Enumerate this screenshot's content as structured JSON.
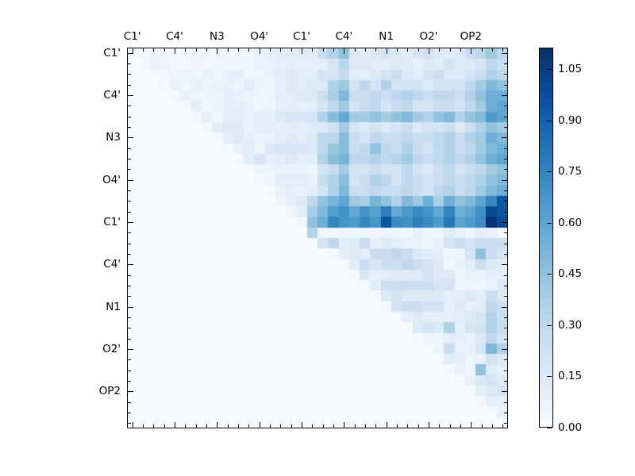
{
  "figure": {
    "background": "#ffffff",
    "axis_color": "#000000"
  },
  "chart_data": {
    "type": "heatmap",
    "title": "",
    "xlabel": "",
    "ylabel": "",
    "colormap": "Blues",
    "colormap_anchors": [
      "#f7fbff",
      "#deebf7",
      "#c6dbef",
      "#9ecae1",
      "#6baed6",
      "#4292c6",
      "#2171b5",
      "#08519c",
      "#08306b"
    ],
    "vmin": 0,
    "vmax": 1.113,
    "n": 36,
    "grid": "off",
    "triangle": "upper",
    "x_tick_labels": [
      "C1'",
      "C4'",
      "N3",
      "O4'",
      "C1'",
      "C4'",
      "N1",
      "O2'",
      "OP2"
    ],
    "y_tick_labels": [
      "C1'",
      "C4'",
      "N3",
      "O4'",
      "C1'",
      "C4'",
      "N1",
      "O2'",
      "OP2"
    ],
    "major_tick_cells": [
      0,
      4,
      8,
      12,
      16,
      20,
      24,
      28,
      32
    ],
    "colorbar": {
      "tick_labels": [
        "1.05",
        "0.90",
        "0.75",
        "0.60",
        "0.45",
        "0.30",
        "0.15",
        "0.00"
      ],
      "tick_values": [
        1.05,
        0.9,
        0.75,
        0.6,
        0.45,
        0.3,
        0.15,
        0.0
      ],
      "position": "right"
    },
    "values": [
      [
        0.02,
        0.03,
        0.05,
        0.04,
        0.03,
        0.03,
        0.04,
        0.03,
        0.04,
        0.05,
        0.04,
        0.05,
        0.08,
        0.1,
        0.12,
        0.13,
        0.14,
        0.12,
        0.25,
        0.35,
        0.45,
        0.15,
        0.12,
        0.15,
        0.2,
        0.15,
        0.12,
        0.18,
        0.22,
        0.15,
        0.12,
        0.15,
        0.25,
        0.3,
        0.42,
        0.3
      ],
      [
        0,
        0.02,
        0.07,
        0.06,
        0.03,
        0.03,
        0.05,
        0.03,
        0.04,
        0.04,
        0.05,
        0.05,
        0.08,
        0.08,
        0.1,
        0.12,
        0.1,
        0.1,
        0.1,
        0.18,
        0.32,
        0.15,
        0.14,
        0.12,
        0.12,
        0.15,
        0.14,
        0.1,
        0.14,
        0.12,
        0.2,
        0.15,
        0.15,
        0.2,
        0.3,
        0.25
      ],
      [
        0,
        0,
        0.02,
        0.03,
        0.05,
        0.06,
        0.04,
        0.07,
        0.05,
        0.08,
        0.1,
        0.05,
        0.05,
        0.08,
        0.12,
        0.15,
        0.12,
        0.12,
        0.2,
        0.18,
        0.28,
        0.12,
        0.1,
        0.15,
        0.2,
        0.25,
        0.15,
        0.12,
        0.2,
        0.25,
        0.15,
        0.15,
        0.2,
        0.25,
        0.35,
        0.3
      ],
      [
        0,
        0,
        0,
        0.02,
        0.07,
        0.05,
        0.09,
        0.06,
        0.08,
        0.09,
        0.06,
        0.12,
        0.06,
        0.04,
        0.1,
        0.15,
        0.12,
        0.15,
        0.15,
        0.35,
        0.42,
        0.2,
        0.3,
        0.2,
        0.35,
        0.2,
        0.2,
        0.2,
        0.15,
        0.2,
        0.2,
        0.2,
        0.3,
        0.4,
        0.5,
        0.45
      ],
      [
        0,
        0,
        0,
        0,
        0.02,
        0.08,
        0.05,
        0.06,
        0.05,
        0.1,
        0.08,
        0.06,
        0.05,
        0.05,
        0.12,
        0.12,
        0.15,
        0.15,
        0.25,
        0.38,
        0.5,
        0.25,
        0.25,
        0.3,
        0.25,
        0.3,
        0.35,
        0.3,
        0.25,
        0.3,
        0.3,
        0.25,
        0.35,
        0.45,
        0.55,
        0.55
      ],
      [
        0,
        0,
        0,
        0,
        0,
        0.02,
        0.12,
        0.05,
        0.06,
        0.1,
        0.1,
        0.08,
        0.05,
        0.06,
        0.1,
        0.12,
        0.1,
        0.12,
        0.2,
        0.3,
        0.42,
        0.2,
        0.25,
        0.3,
        0.2,
        0.25,
        0.3,
        0.2,
        0.2,
        0.25,
        0.25,
        0.2,
        0.3,
        0.4,
        0.55,
        0.6
      ],
      [
        0,
        0,
        0,
        0,
        0,
        0,
        0.02,
        0.1,
        0.05,
        0.12,
        0.12,
        0.08,
        0.1,
        0.1,
        0.15,
        0.18,
        0.18,
        0.2,
        0.35,
        0.48,
        0.58,
        0.4,
        0.4,
        0.45,
        0.4,
        0.45,
        0.5,
        0.4,
        0.35,
        0.45,
        0.5,
        0.35,
        0.45,
        0.5,
        0.65,
        0.6
      ],
      [
        0,
        0,
        0,
        0,
        0,
        0,
        0,
        0.02,
        0.12,
        0.15,
        0.15,
        0.08,
        0.1,
        0.12,
        0.1,
        0.12,
        0.1,
        0.12,
        0.15,
        0.22,
        0.4,
        0.18,
        0.15,
        0.2,
        0.15,
        0.2,
        0.25,
        0.15,
        0.2,
        0.2,
        0.25,
        0.15,
        0.25,
        0.35,
        0.45,
        0.4
      ],
      [
        0,
        0,
        0,
        0,
        0,
        0,
        0,
        0,
        0.02,
        0.1,
        0.15,
        0.1,
        0.08,
        0.08,
        0.12,
        0.15,
        0.12,
        0.15,
        0.3,
        0.32,
        0.48,
        0.25,
        0.2,
        0.3,
        0.25,
        0.25,
        0.3,
        0.25,
        0.25,
        0.3,
        0.35,
        0.25,
        0.35,
        0.4,
        0.55,
        0.5
      ],
      [
        0,
        0,
        0,
        0,
        0,
        0,
        0,
        0,
        0,
        0.02,
        0.08,
        0.12,
        0.06,
        0.15,
        0.18,
        0.18,
        0.18,
        0.15,
        0.3,
        0.43,
        0.48,
        0.25,
        0.3,
        0.45,
        0.3,
        0.25,
        0.35,
        0.25,
        0.2,
        0.3,
        0.35,
        0.25,
        0.3,
        0.4,
        0.5,
        0.55
      ],
      [
        0,
        0,
        0,
        0,
        0,
        0,
        0,
        0,
        0,
        0,
        0.02,
        0.12,
        0.18,
        0.1,
        0.12,
        0.15,
        0.1,
        0.12,
        0.35,
        0.47,
        0.53,
        0.3,
        0.3,
        0.35,
        0.3,
        0.35,
        0.4,
        0.3,
        0.25,
        0.3,
        0.35,
        0.3,
        0.35,
        0.45,
        0.55,
        0.6
      ],
      [
        0,
        0,
        0,
        0,
        0,
        0,
        0,
        0,
        0,
        0,
        0,
        0.02,
        0.06,
        0.06,
        0.08,
        0.08,
        0.08,
        0.05,
        0.2,
        0.27,
        0.4,
        0.2,
        0.2,
        0.25,
        0.2,
        0.2,
        0.3,
        0.2,
        0.15,
        0.25,
        0.3,
        0.2,
        0.25,
        0.3,
        0.4,
        0.45
      ],
      [
        0,
        0,
        0,
        0,
        0,
        0,
        0,
        0,
        0,
        0,
        0,
        0,
        0.02,
        0.04,
        0.12,
        0.12,
        0.12,
        0.08,
        0.25,
        0.35,
        0.47,
        0.2,
        0.25,
        0.35,
        0.3,
        0.2,
        0.3,
        0.25,
        0.2,
        0.25,
        0.3,
        0.25,
        0.3,
        0.35,
        0.45,
        0.5
      ],
      [
        0,
        0,
        0,
        0,
        0,
        0,
        0,
        0,
        0,
        0,
        0,
        0,
        0,
        0.02,
        0.08,
        0.1,
        0.08,
        0.1,
        0.2,
        0.36,
        0.5,
        0.25,
        0.25,
        0.3,
        0.25,
        0.25,
        0.3,
        0.25,
        0.2,
        0.3,
        0.35,
        0.25,
        0.3,
        0.4,
        0.5,
        0.55
      ],
      [
        0,
        0,
        0,
        0,
        0,
        0,
        0,
        0,
        0,
        0,
        0,
        0,
        0,
        0,
        0.05,
        0.1,
        0.15,
        0.3,
        0.45,
        0.52,
        0.6,
        0.42,
        0.38,
        0.52,
        0.45,
        0.35,
        0.5,
        0.42,
        0.55,
        0.38,
        0.55,
        0.45,
        0.5,
        0.6,
        0.75,
        0.95
      ],
      [
        0,
        0,
        0,
        0,
        0,
        0,
        0,
        0,
        0,
        0,
        0,
        0,
        0,
        0,
        0,
        0.05,
        0.12,
        0.38,
        0.5,
        0.63,
        0.7,
        0.58,
        0.68,
        0.62,
        0.78,
        0.58,
        0.66,
        0.72,
        0.68,
        0.58,
        0.75,
        0.55,
        0.6,
        0.7,
        1.0,
        0.95
      ],
      [
        0,
        0,
        0,
        0,
        0,
        0,
        0,
        0,
        0,
        0,
        0,
        0,
        0,
        0,
        0,
        0,
        0.05,
        0.45,
        0.55,
        0.75,
        0.68,
        0.65,
        0.74,
        0.68,
        0.95,
        0.72,
        0.7,
        0.78,
        0.72,
        0.65,
        0.8,
        0.6,
        0.65,
        0.72,
        1.1,
        1.0
      ],
      [
        0,
        0,
        0,
        0,
        0,
        0,
        0,
        0,
        0,
        0,
        0,
        0,
        0,
        0,
        0,
        0,
        0,
        0.35,
        0.05,
        0.04,
        0.05,
        0.04,
        0.05,
        0.04,
        0.05,
        0.04,
        0.05,
        0.1,
        0.05,
        0.04,
        0.12,
        0.08,
        0.05,
        0.1,
        0.08,
        0.03
      ],
      [
        0,
        0,
        0,
        0,
        0,
        0,
        0,
        0,
        0,
        0,
        0,
        0,
        0,
        0,
        0,
        0,
        0,
        0,
        0.2,
        0.3,
        0.12,
        0.15,
        0.25,
        0.1,
        0.15,
        0.1,
        0.08,
        0.08,
        0.05,
        0.08,
        0.2,
        0.25,
        0.2,
        0.25,
        0.25,
        0.25
      ],
      [
        0,
        0,
        0,
        0,
        0,
        0,
        0,
        0,
        0,
        0,
        0,
        0,
        0,
        0,
        0,
        0,
        0,
        0,
        0,
        0.02,
        0.1,
        0.15,
        0.12,
        0.25,
        0.25,
        0.3,
        0.25,
        0.15,
        0.12,
        0.12,
        0.05,
        0.05,
        0.2,
        0.45,
        0.25,
        0.2
      ],
      [
        0,
        0,
        0,
        0,
        0,
        0,
        0,
        0,
        0,
        0,
        0,
        0,
        0,
        0,
        0,
        0,
        0,
        0,
        0,
        0,
        0.02,
        0.12,
        0.25,
        0.18,
        0.25,
        0.25,
        0.3,
        0.25,
        0.2,
        0.15,
        0.03,
        0.08,
        0.12,
        0.25,
        0.15,
        0.12
      ],
      [
        0,
        0,
        0,
        0,
        0,
        0,
        0,
        0,
        0,
        0,
        0,
        0,
        0,
        0,
        0,
        0,
        0,
        0,
        0,
        0,
        0,
        0.02,
        0.18,
        0.1,
        0.12,
        0.15,
        0.15,
        0.15,
        0.2,
        0.15,
        0.15,
        0.05,
        0.08,
        0.08,
        0.1,
        0.1
      ],
      [
        0,
        0,
        0,
        0,
        0,
        0,
        0,
        0,
        0,
        0,
        0,
        0,
        0,
        0,
        0,
        0,
        0,
        0,
        0,
        0,
        0,
        0,
        0.02,
        0.12,
        0.25,
        0.25,
        0.25,
        0.25,
        0.25,
        0.2,
        0.2,
        0.05,
        0.05,
        0.05,
        0.08,
        0.15
      ],
      [
        0,
        0,
        0,
        0,
        0,
        0,
        0,
        0,
        0,
        0,
        0,
        0,
        0,
        0,
        0,
        0,
        0,
        0,
        0,
        0,
        0,
        0,
        0,
        0.02,
        0.15,
        0.2,
        0.15,
        0.15,
        0.15,
        0.15,
        0.1,
        0.12,
        0.15,
        0.12,
        0.25,
        0.15
      ],
      [
        0,
        0,
        0,
        0,
        0,
        0,
        0,
        0,
        0,
        0,
        0,
        0,
        0,
        0,
        0,
        0,
        0,
        0,
        0,
        0,
        0,
        0,
        0,
        0,
        0.02,
        0.2,
        0.25,
        0.25,
        0.2,
        0.2,
        0.1,
        0.15,
        0.1,
        0.12,
        0.3,
        0.25
      ],
      [
        0,
        0,
        0,
        0,
        0,
        0,
        0,
        0,
        0,
        0,
        0,
        0,
        0,
        0,
        0,
        0,
        0,
        0,
        0,
        0,
        0,
        0,
        0,
        0,
        0,
        0.02,
        0.1,
        0.15,
        0.1,
        0.1,
        0.1,
        0.12,
        0.15,
        0.18,
        0.35,
        0.25
      ],
      [
        0,
        0,
        0,
        0,
        0,
        0,
        0,
        0,
        0,
        0,
        0,
        0,
        0,
        0,
        0,
        0,
        0,
        0,
        0,
        0,
        0,
        0,
        0,
        0,
        0,
        0,
        0.02,
        0.15,
        0.2,
        0.15,
        0.35,
        0.1,
        0.18,
        0.2,
        0.35,
        0.25
      ],
      [
        0,
        0,
        0,
        0,
        0,
        0,
        0,
        0,
        0,
        0,
        0,
        0,
        0,
        0,
        0,
        0,
        0,
        0,
        0,
        0,
        0,
        0,
        0,
        0,
        0,
        0,
        0,
        0.02,
        0.05,
        0.05,
        0.12,
        0.1,
        0.08,
        0.15,
        0.3,
        0.2
      ],
      [
        0,
        0,
        0,
        0,
        0,
        0,
        0,
        0,
        0,
        0,
        0,
        0,
        0,
        0,
        0,
        0,
        0,
        0,
        0,
        0,
        0,
        0,
        0,
        0,
        0,
        0,
        0,
        0,
        0.02,
        0.05,
        0.25,
        0.08,
        0.08,
        0.2,
        0.5,
        0.35
      ],
      [
        0,
        0,
        0,
        0,
        0,
        0,
        0,
        0,
        0,
        0,
        0,
        0,
        0,
        0,
        0,
        0,
        0,
        0,
        0,
        0,
        0,
        0,
        0,
        0,
        0,
        0,
        0,
        0,
        0,
        0.02,
        0.12,
        0.1,
        0.05,
        0.08,
        0.2,
        0.15
      ],
      [
        0,
        0,
        0,
        0,
        0,
        0,
        0,
        0,
        0,
        0,
        0,
        0,
        0,
        0,
        0,
        0,
        0,
        0,
        0,
        0,
        0,
        0,
        0,
        0,
        0,
        0,
        0,
        0,
        0,
        0,
        0.02,
        0.08,
        0.05,
        0.45,
        0.15,
        0.1
      ],
      [
        0,
        0,
        0,
        0,
        0,
        0,
        0,
        0,
        0,
        0,
        0,
        0,
        0,
        0,
        0,
        0,
        0,
        0,
        0,
        0,
        0,
        0,
        0,
        0,
        0,
        0,
        0,
        0,
        0,
        0,
        0,
        0.02,
        0.08,
        0.15,
        0.2,
        0.15
      ],
      [
        0,
        0,
        0,
        0,
        0,
        0,
        0,
        0,
        0,
        0,
        0,
        0,
        0,
        0,
        0,
        0,
        0,
        0,
        0,
        0,
        0,
        0,
        0,
        0,
        0,
        0,
        0,
        0,
        0,
        0,
        0,
        0,
        0.02,
        0.1,
        0.15,
        0.2
      ],
      [
        0,
        0,
        0,
        0,
        0,
        0,
        0,
        0,
        0,
        0,
        0,
        0,
        0,
        0,
        0,
        0,
        0,
        0,
        0,
        0,
        0,
        0,
        0,
        0,
        0,
        0,
        0,
        0,
        0,
        0,
        0,
        0,
        0,
        0.02,
        0.1,
        0.1
      ],
      [
        0,
        0,
        0,
        0,
        0,
        0,
        0,
        0,
        0,
        0,
        0,
        0,
        0,
        0,
        0,
        0,
        0,
        0,
        0,
        0,
        0,
        0,
        0,
        0,
        0,
        0,
        0,
        0,
        0,
        0,
        0,
        0,
        0,
        0,
        0.02,
        0.08
      ],
      [
        0,
        0,
        0,
        0,
        0,
        0,
        0,
        0,
        0,
        0,
        0,
        0,
        0,
        0,
        0,
        0,
        0,
        0,
        0,
        0,
        0,
        0,
        0,
        0,
        0,
        0,
        0,
        0,
        0,
        0,
        0,
        0,
        0,
        0,
        0,
        0.02
      ]
    ]
  }
}
